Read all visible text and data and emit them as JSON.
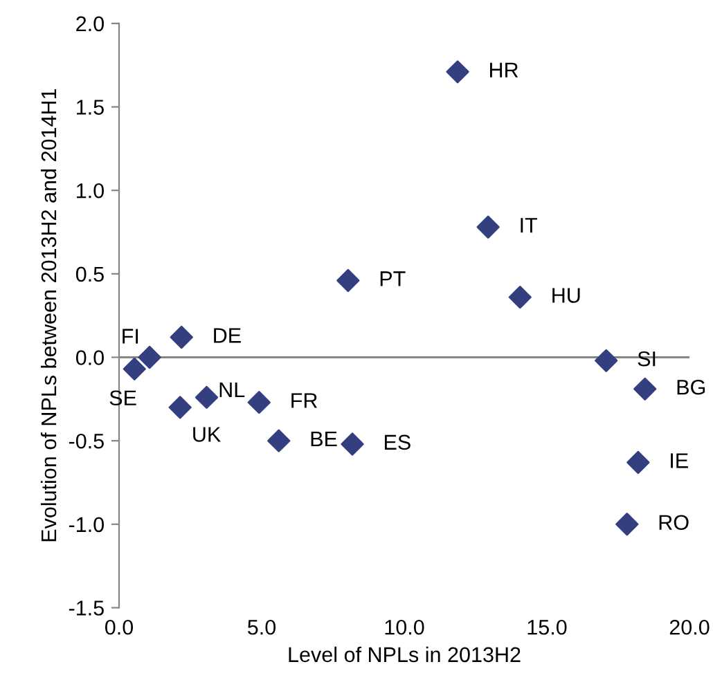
{
  "chart_data": {
    "type": "scatter",
    "xlabel": "Level of NPLs in 2013H2",
    "ylabel": "Evolution of NPLs between 2013H2 and 2014H1",
    "x": [
      11.87,
      12.94,
      8.03,
      14.06,
      2.19,
      1.07,
      0.54,
      2.14,
      3.07,
      4.91,
      5.6,
      8.18,
      17.08,
      18.44,
      18.2,
      17.81
    ],
    "series": [
      {
        "color": "#333f7f",
        "values": [
          1.71,
          0.78,
          0.46,
          0.36,
          0.12,
          0.0,
          -0.07,
          -0.3,
          -0.24,
          -0.27,
          -0.5,
          -0.52,
          -0.02,
          -0.19,
          -0.63,
          -1.0
        ]
      }
    ],
    "annotations": [
      {
        "text": "HR",
        "x": 11.87,
        "y": 1.71
      },
      {
        "text": "IT",
        "x": 12.94,
        "y": 0.78
      },
      {
        "text": "PT",
        "x": 8.03,
        "y": 0.46
      },
      {
        "text": "HU",
        "x": 14.06,
        "y": 0.36
      },
      {
        "text": "DE",
        "x": 2.19,
        "y": 0.12
      },
      {
        "text": "FI",
        "x": 1.07,
        "y": 0.0
      },
      {
        "text": "SE",
        "x": 0.54,
        "y": -0.07
      },
      {
        "text": "UK",
        "x": 2.14,
        "y": -0.3
      },
      {
        "text": "NL",
        "x": 3.07,
        "y": -0.24
      },
      {
        "text": "FR",
        "x": 4.91,
        "y": -0.27
      },
      {
        "text": "BE",
        "x": 5.6,
        "y": -0.5
      },
      {
        "text": "ES",
        "x": 8.18,
        "y": -0.52
      },
      {
        "text": "SI",
        "x": 17.08,
        "y": -0.02
      },
      {
        "text": "BG",
        "x": 18.44,
        "y": -0.19
      },
      {
        "text": "IE",
        "x": 18.2,
        "y": -0.63
      },
      {
        "text": "RO",
        "x": 17.81,
        "y": -1.0
      }
    ],
    "xlim": [
      0,
      20
    ],
    "xticks": [
      {
        "value": 0,
        "label": "0.0"
      },
      {
        "value": 5,
        "label": "5.0"
      },
      {
        "value": 10,
        "label": "10.0"
      },
      {
        "value": 15,
        "label": "15.0"
      },
      {
        "value": 20,
        "label": "20.0"
      }
    ],
    "ylim": [
      -1.5,
      2.0
    ],
    "yticks": [
      {
        "value": -1.5,
        "label": "-1.5"
      },
      {
        "value": -1.0,
        "label": "-1.0"
      },
      {
        "value": -0.5,
        "label": "-0.5"
      },
      {
        "value": 0.0,
        "label": "0.0"
      },
      {
        "value": 0.5,
        "label": "0.5"
      },
      {
        "value": 1.0,
        "label": "1.0"
      },
      {
        "value": 1.5,
        "label": "1.5"
      },
      {
        "value": 2.0,
        "label": "2.0"
      }
    ],
    "ref_lines": [
      {
        "axis": "y",
        "value": 0,
        "color": "#868686"
      }
    ],
    "marker": "diamond",
    "grid": false,
    "legend": false
  }
}
